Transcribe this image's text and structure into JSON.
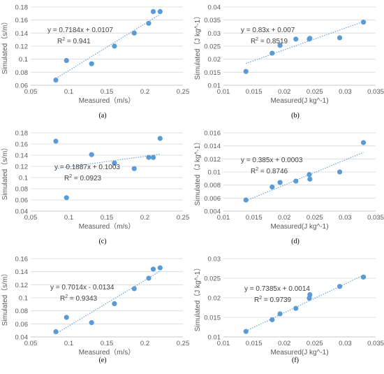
{
  "chart_data": [
    {
      "type": "scatter",
      "panel_label": "(a)",
      "xlabel": "Measured（m/s）",
      "ylabel": "Simulated（s/m）",
      "xlim": [
        0.05,
        0.25
      ],
      "ylim": [
        0.06,
        0.18
      ],
      "xticks": [
        "0.05",
        "0.1",
        "0.15",
        "0.2",
        "0.25"
      ],
      "yticks": [
        "0.06",
        "0.08",
        "0.1",
        "0.12",
        "0.14",
        "0.16",
        "0.18"
      ],
      "x": [
        0.083,
        0.097,
        0.13,
        0.16,
        0.186,
        0.205,
        0.211,
        0.22
      ],
      "y": [
        0.068,
        0.098,
        0.093,
        0.12,
        0.14,
        0.155,
        0.173,
        0.173
      ],
      "trendline": {
        "slope": 0.7184,
        "intercept": 0.0107,
        "x_range": [
          0.083,
          0.22
        ]
      },
      "equation": "y = 0.7184x + 0.0107",
      "r2_prefix": "R",
      "r2_sup": "2",
      "r2_value": " = 0.941"
    },
    {
      "type": "scatter",
      "panel_label": "(b)",
      "xlabel": "Measured(J kg^-1)",
      "ylabel": "Simulated（J kg^-1）",
      "xlim": [
        0.01,
        0.035
      ],
      "ylim": [
        0.01,
        0.04
      ],
      "xticks": [
        "0.01",
        "0.015",
        "0.02",
        "0.025",
        "0.03",
        "0.035"
      ],
      "yticks": [
        "0.01",
        "0.015",
        "0.02",
        "0.025",
        "0.03",
        "0.035",
        "0.04"
      ],
      "x": [
        0.0137,
        0.018,
        0.0193,
        0.0219,
        0.0241,
        0.0242,
        0.0291,
        0.033
      ],
      "y": [
        0.0153,
        0.0223,
        0.0253,
        0.0277,
        0.0277,
        0.028,
        0.0282,
        0.0342
      ],
      "trendline": {
        "slope": 0.83,
        "intercept": 0.007,
        "x_range": [
          0.0137,
          0.033
        ]
      },
      "equation": "y = 0.83x + 0.007",
      "r2_prefix": "R",
      "r2_sup": "2",
      "r2_value": " = 0.8519"
    },
    {
      "type": "scatter",
      "panel_label": "(c)",
      "xlabel": "Measured（m/s）",
      "ylabel": "Simulated（s/m）",
      "xlim": [
        0.05,
        0.25
      ],
      "ylim": [
        0.04,
        0.18
      ],
      "xticks": [
        "0.05",
        "0.1",
        "0.15",
        "0.2",
        "0.25"
      ],
      "yticks": [
        "0.04",
        "0.06",
        "0.08",
        "0.1",
        "0.12",
        "0.14",
        "0.16",
        "0.18"
      ],
      "x": [
        0.083,
        0.097,
        0.13,
        0.16,
        0.186,
        0.205,
        0.211,
        0.22
      ],
      "y": [
        0.165,
        0.064,
        0.141,
        0.126,
        0.116,
        0.136,
        0.136,
        0.17
      ],
      "trendline": {
        "slope": 0.1887,
        "intercept": 0.1003,
        "x_range": [
          0.083,
          0.22
        ]
      },
      "equation": "y = 0.1887x + 0.1003",
      "r2_prefix": "R",
      "r2_sup": "2",
      "r2_value": " = 0.0923"
    },
    {
      "type": "scatter",
      "panel_label": "(d)",
      "xlabel": "Measured(J kg^-1)",
      "ylabel": "Simulated（J kg^-1）",
      "xlim": [
        0.01,
        0.035
      ],
      "ylim": [
        0.004,
        0.016
      ],
      "xticks": [
        "0.01",
        "0.015",
        "0.02",
        "0.025",
        "0.03",
        "0.035"
      ],
      "yticks": [
        "0.004",
        "0.006",
        "0.008",
        "0.01",
        "0.012",
        "0.014",
        "0.016"
      ],
      "x": [
        0.0137,
        0.018,
        0.0193,
        0.0219,
        0.0241,
        0.0242,
        0.0291,
        0.033
      ],
      "y": [
        0.0057,
        0.0077,
        0.0084,
        0.0086,
        0.0096,
        0.0089,
        0.01,
        0.0145
      ],
      "trendline": {
        "slope": 0.385,
        "intercept": 0.0003,
        "x_range": [
          0.0137,
          0.033
        ]
      },
      "equation": "y = 0.385x + 0.0003",
      "r2_prefix": "R",
      "r2_sup": "2",
      "r2_value": " = 0.8746"
    },
    {
      "type": "scatter",
      "panel_label": "(e)",
      "xlabel": "Measured（m/s）",
      "ylabel": "Simulated（s/m）",
      "xlim": [
        0.05,
        0.25
      ],
      "ylim": [
        0.04,
        0.16
      ],
      "xticks": [
        "0.05",
        "0.1",
        "0.15",
        "0.2",
        "0.25"
      ],
      "yticks": [
        "0.04",
        "0.06",
        "0.08",
        "0.1",
        "0.12",
        "0.14",
        "0.16"
      ],
      "x": [
        0.083,
        0.097,
        0.13,
        0.16,
        0.186,
        0.205,
        0.211,
        0.22
      ],
      "y": [
        0.048,
        0.07,
        0.062,
        0.091,
        0.114,
        0.13,
        0.144,
        0.146
      ],
      "trendline": {
        "slope": 0.7014,
        "intercept": -0.0134,
        "x_range": [
          0.083,
          0.22
        ]
      },
      "equation": "y = 0.7014x - 0.0134",
      "r2_prefix": "R",
      "r2_sup": "2",
      "r2_value": " = 0.9343"
    },
    {
      "type": "scatter",
      "panel_label": "(f)",
      "xlabel": "Measured(J kg^-1)",
      "ylabel": "Simulated（J kg^-1）",
      "xlim": [
        0.01,
        0.035
      ],
      "ylim": [
        0.01,
        0.03
      ],
      "xticks": [
        "0.01",
        "0.015",
        "0.02",
        "0.025",
        "0.03",
        "0.035"
      ],
      "yticks": [
        "0.01",
        "0.015",
        "0.02",
        "0.025",
        "0.03"
      ],
      "x": [
        0.0137,
        0.018,
        0.0193,
        0.0219,
        0.0241,
        0.0242,
        0.0291,
        0.033
      ],
      "y": [
        0.0114,
        0.0144,
        0.0159,
        0.0173,
        0.0199,
        0.0208,
        0.0229,
        0.0253
      ],
      "trendline": {
        "slope": 0.7385,
        "intercept": 0.0014,
        "x_range": [
          0.0137,
          0.033
        ]
      },
      "equation": "y = 0.7385x + 0.0014",
      "r2_prefix": "R",
      "r2_sup": "2",
      "r2_value": " = 0.9739"
    }
  ],
  "colors": {
    "marker": "#5B9BD5",
    "trendline": "#5B9BD5",
    "gridline": "#D9D9D9",
    "text": "#595959"
  }
}
